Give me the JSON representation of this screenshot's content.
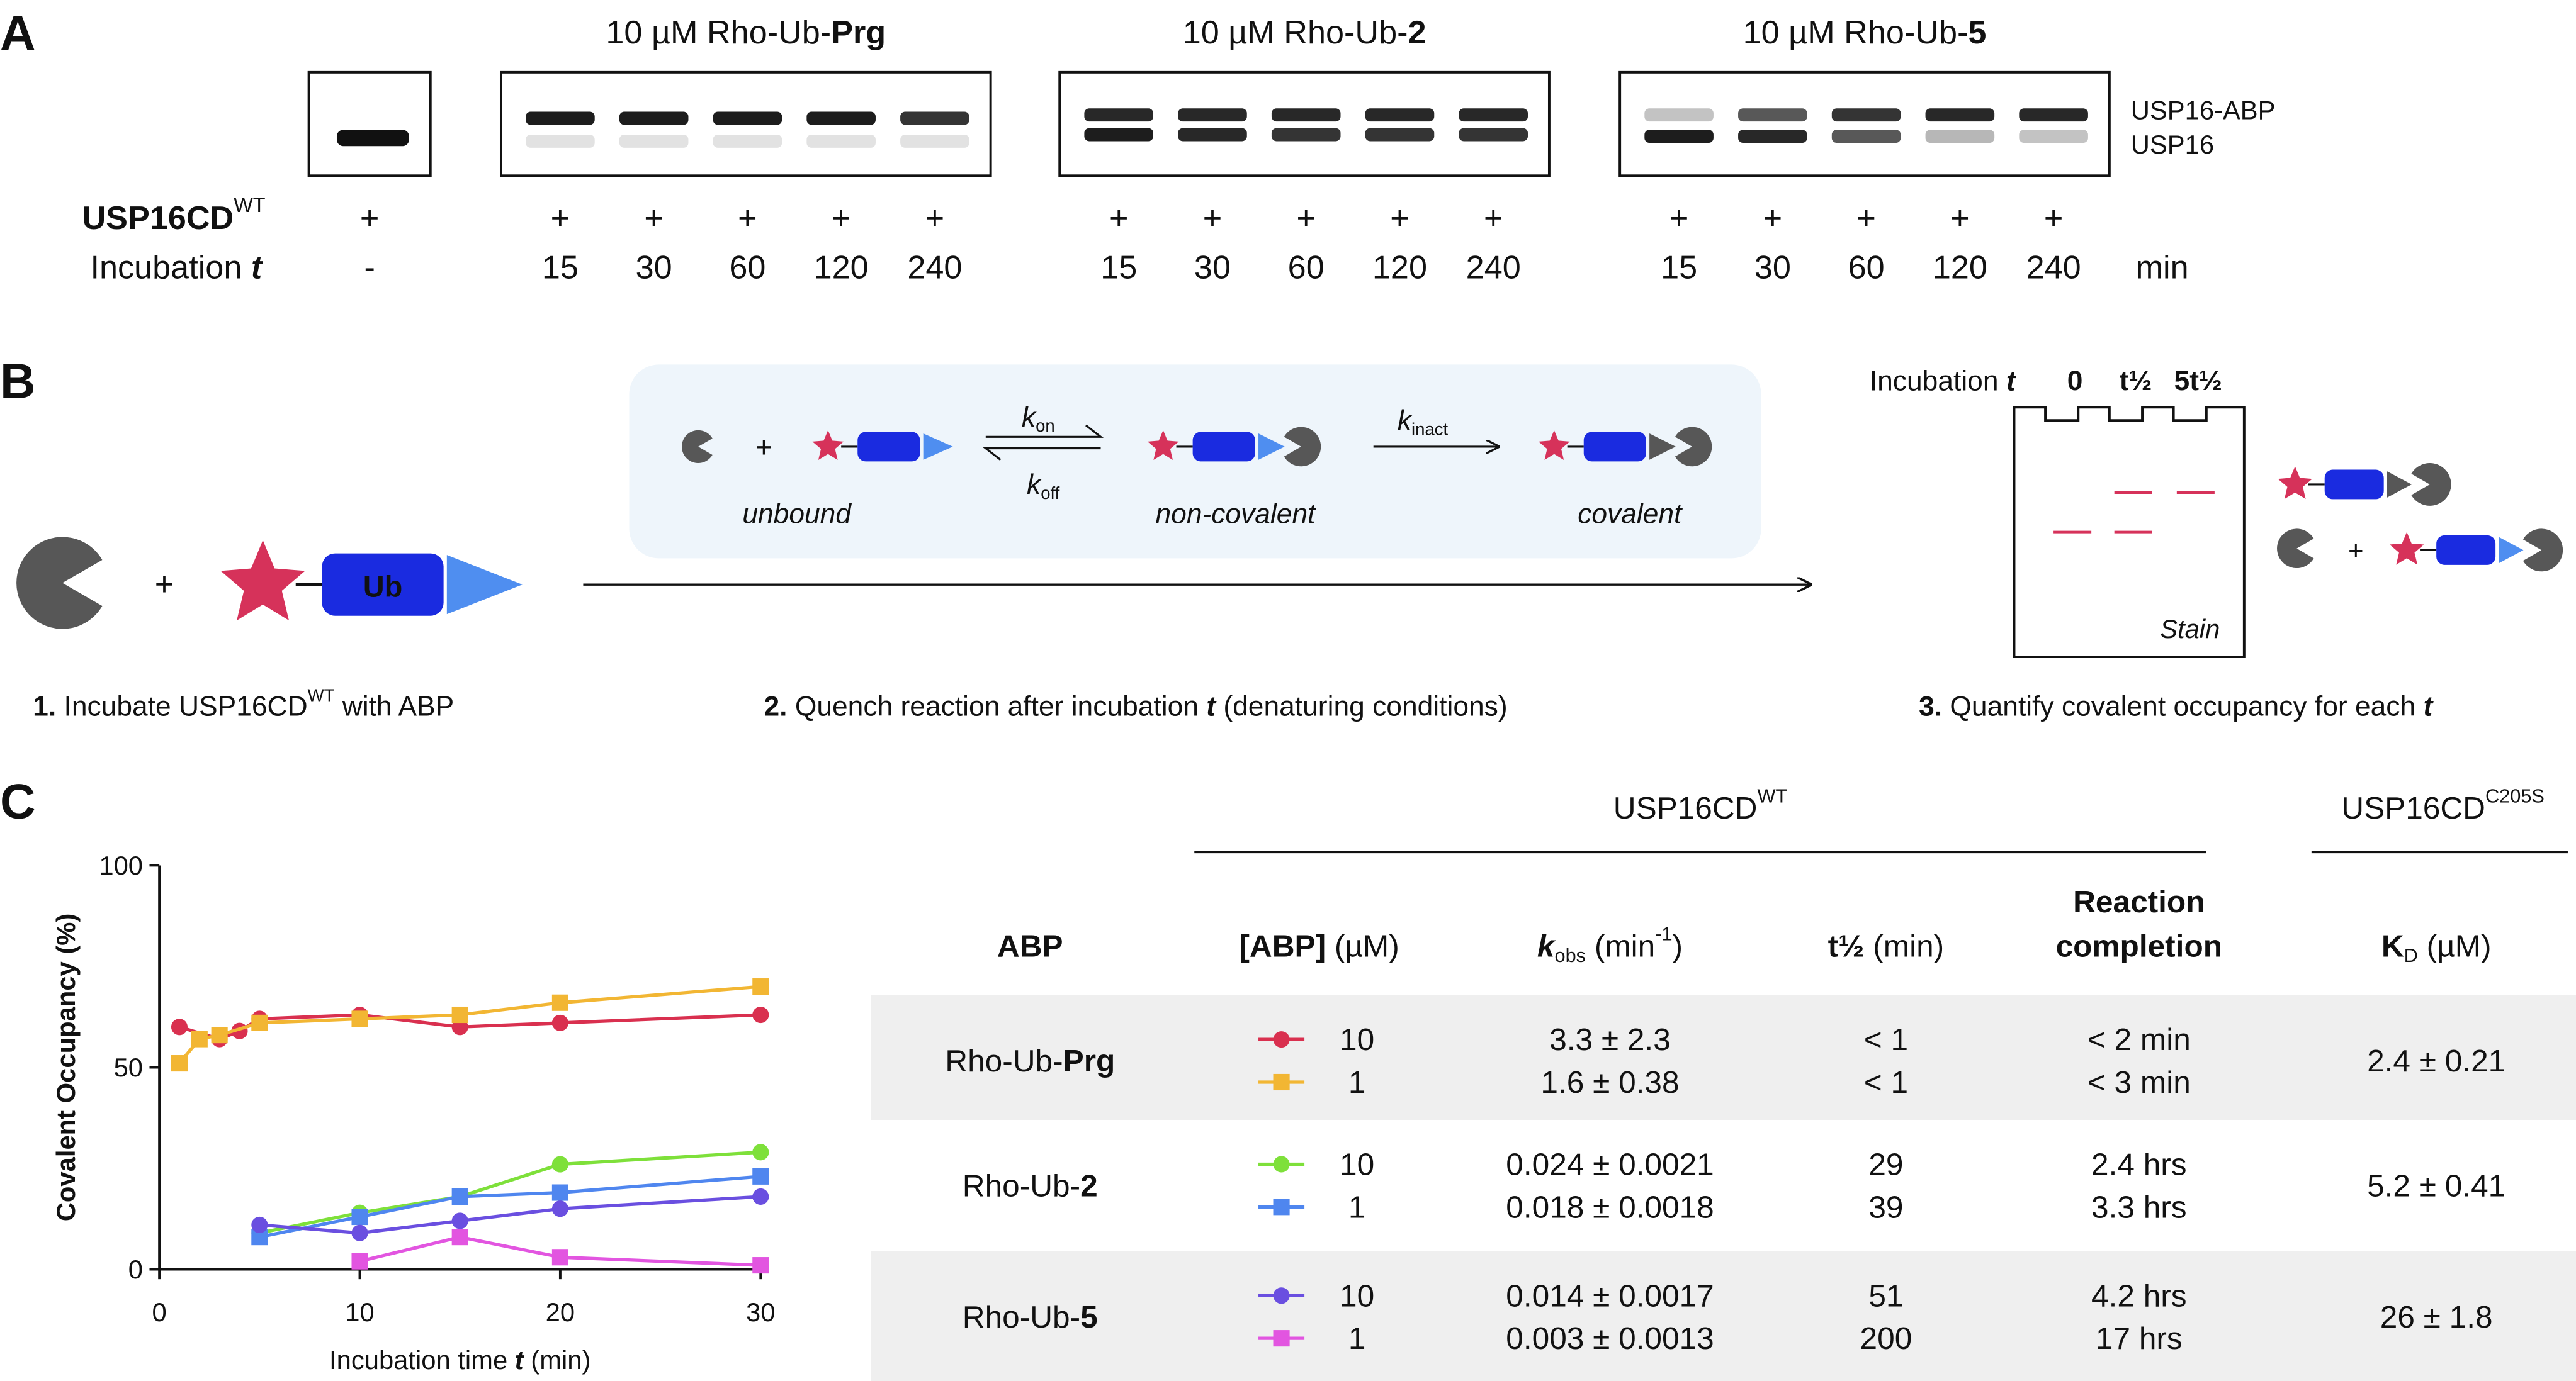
{
  "panel_labels": [
    "A",
    "B",
    "C"
  ],
  "panel_a": {
    "titles": [
      [
        {
          "text": "10 µM Rho-Ub-"
        },
        {
          "text": "Prg",
          "style": "b"
        }
      ],
      [
        {
          "text": "10 µM Rho-Ub-"
        },
        {
          "text": "2",
          "style": "b"
        }
      ],
      [
        {
          "text": "10 µM Rho-Ub-"
        },
        {
          "text": "5",
          "style": "b"
        }
      ]
    ],
    "band_labels": [
      "USP16-ABP",
      "USP16"
    ],
    "enzyme_label": [
      {
        "text": "USP16CD",
        "style": "b"
      },
      {
        "text": "WT",
        "style": "sup"
      }
    ],
    "time_label": [
      {
        "text": "Incubation "
      },
      {
        "text": "t",
        "style": "bi"
      }
    ],
    "control": {
      "enzyme": "+",
      "time": "-"
    },
    "gels": [
      {
        "enzyme": [
          "+",
          "+",
          "+",
          "+",
          "+"
        ],
        "times": [
          15,
          30,
          60,
          120,
          240
        ]
      },
      {
        "enzyme": [
          "+",
          "+",
          "+",
          "+",
          "+"
        ],
        "times": [
          15,
          30,
          60,
          120,
          240
        ]
      },
      {
        "enzyme": [
          "+",
          "+",
          "+",
          "+",
          "+"
        ],
        "times": [
          15,
          30,
          60,
          120,
          240
        ]
      }
    ],
    "unit": "min"
  },
  "scheme": {
    "plus": "+",
    "ub": "Ub",
    "states": [
      "unbound",
      "non-covalent",
      "covalent"
    ],
    "k_on": [
      {
        "text": "k",
        "style": "i"
      },
      {
        "text": "on",
        "style": "sub"
      }
    ],
    "k_off": [
      {
        "text": "k",
        "style": "i"
      },
      {
        "text": "off",
        "style": "sub"
      }
    ],
    "k_inact": [
      {
        "text": "k",
        "style": "i"
      },
      {
        "text": "inact",
        "style": "sub"
      }
    ],
    "steps": [
      [
        {
          "text": "1.",
          "style": "b"
        },
        {
          "text": " Incubate USP16CD"
        },
        {
          "text": "WT",
          "style": "sup"
        },
        {
          "text": " with ABP"
        }
      ],
      [
        {
          "text": "2.",
          "style": "b"
        },
        {
          "text": " Quench reaction after incubation "
        },
        {
          "text": "t",
          "style": "bi"
        },
        {
          "text": " (denaturing conditions)"
        }
      ],
      [
        {
          "text": "3.",
          "style": "b"
        },
        {
          "text": " Quantify covalent occupancy for each "
        },
        {
          "text": "t",
          "style": "bi"
        }
      ]
    ],
    "gel": {
      "header": [
        {
          "text": "Incubation "
        },
        {
          "text": "t",
          "style": "bi"
        }
      ],
      "lanes": [
        "0",
        "t½",
        "5t½"
      ],
      "stain": "Stain"
    }
  },
  "chart_data": {
    "type": "scatter",
    "xlabel": [
      {
        "text": "Incubation time "
      },
      {
        "text": "t",
        "style": "bi"
      },
      {
        "text": " (min)"
      }
    ],
    "ylabel": "Covalent Occupancy (%)",
    "xlim": [
      0,
      30
    ],
    "ylim": [
      0,
      100
    ],
    "xticks": [
      0,
      10,
      20,
      30
    ],
    "yticks": [
      0,
      50,
      100
    ],
    "series": [
      {
        "color": "#d9304f",
        "marker": "circle",
        "x": [
          1,
          3,
          4,
          5,
          10,
          15,
          20,
          30
        ],
        "values": [
          60,
          57,
          59,
          62,
          63,
          60,
          61,
          63
        ]
      },
      {
        "color": "#f2b633",
        "marker": "square",
        "x": [
          1,
          2,
          3,
          5,
          10,
          15,
          20,
          30
        ],
        "values": [
          51,
          57,
          58,
          61,
          62,
          63,
          66,
          70
        ]
      },
      {
        "color": "#7ee03a",
        "marker": "circle",
        "x": [
          5,
          10,
          15,
          20,
          30
        ],
        "values": [
          9,
          14,
          18,
          26,
          29
        ]
      },
      {
        "color": "#4f86ef",
        "marker": "square",
        "x": [
          5,
          10,
          15,
          20,
          30
        ],
        "values": [
          8,
          13,
          18,
          19,
          23
        ]
      },
      {
        "color": "#6a4fe0",
        "marker": "circle",
        "x": [
          5,
          10,
          15,
          20,
          30
        ],
        "values": [
          11,
          9,
          12,
          15,
          18
        ]
      },
      {
        "color": "#e255e0",
        "marker": "square",
        "x": [
          10,
          15,
          20,
          30
        ],
        "values": [
          2,
          8,
          3,
          1
        ]
      }
    ]
  },
  "table": {
    "group_headers": [
      [
        {
          "text": "USP16CD"
        },
        {
          "text": "WT",
          "style": "sup"
        }
      ],
      [
        {
          "text": "USP16CD"
        },
        {
          "text": "C205S",
          "style": "sup"
        }
      ]
    ],
    "columns": [
      [
        [
          {
            "text": "ABP",
            "style": "b"
          }
        ]
      ],
      [
        [
          {
            "text": "[ABP]",
            "style": "b"
          },
          {
            "text": " (µM)"
          }
        ]
      ],
      [
        [
          {
            "text": "k",
            "style": "bi"
          },
          {
            "text": "obs",
            "style": "sub"
          },
          {
            "text": " (min"
          },
          {
            "text": "-1",
            "style": "sup"
          },
          {
            "text": ")"
          }
        ]
      ],
      [
        [
          {
            "text": "t½",
            "style": "b"
          },
          {
            "text": " (min)"
          }
        ]
      ],
      [
        [
          {
            "text": "Reaction",
            "style": "b"
          }
        ],
        [
          {
            "text": "completion",
            "style": "b"
          }
        ]
      ],
      [
        [
          {
            "text": "K",
            "style": "b"
          },
          {
            "text": "D",
            "style": "sub"
          },
          {
            "text": " (µM)"
          }
        ]
      ]
    ],
    "rows": [
      {
        "abp": [
          {
            "text": "Rho-Ub-"
          },
          {
            "text": "Prg",
            "style": "b"
          }
        ],
        "kd": "2.4 ± 0.21",
        "entries": [
          {
            "conc": 10,
            "kobs": "3.3 ± 2.3",
            "t_half": "< 1",
            "completion": "< 2 min"
          },
          {
            "conc": 1,
            "kobs": "1.6 ± 0.38",
            "t_half": "< 1",
            "completion": "< 3 min"
          }
        ]
      },
      {
        "abp": [
          {
            "text": "Rho-Ub-"
          },
          {
            "text": "2",
            "style": "b"
          }
        ],
        "kd": "5.2 ± 0.41",
        "entries": [
          {
            "conc": 10,
            "kobs": "0.024 ± 0.0021",
            "t_half": "29",
            "completion": "2.4 hrs"
          },
          {
            "conc": 1,
            "kobs": "0.018 ± 0.0018",
            "t_half": "39",
            "completion": "3.3 hrs"
          }
        ]
      },
      {
        "abp": [
          {
            "text": "Rho-Ub-"
          },
          {
            "text": "5",
            "style": "b"
          }
        ],
        "kd": "26 ± 1.8",
        "entries": [
          {
            "conc": 10,
            "kobs": "0.014 ± 0.0017",
            "t_half": "51",
            "completion": "4.2 hrs"
          },
          {
            "conc": 1,
            "kobs": "0.003 ± 0.0013",
            "t_half": "200",
            "completion": "17 hrs"
          }
        ]
      }
    ]
  }
}
